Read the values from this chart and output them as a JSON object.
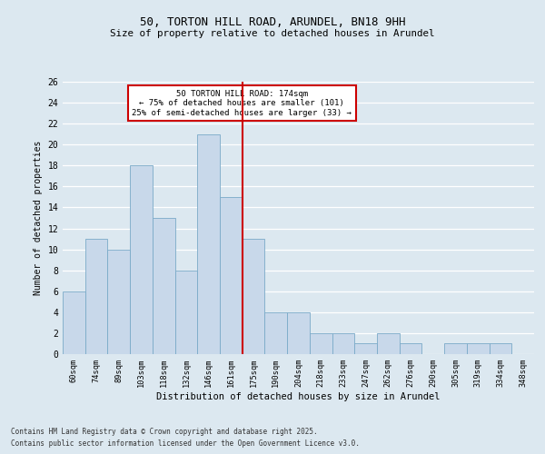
{
  "title1": "50, TORTON HILL ROAD, ARUNDEL, BN18 9HH",
  "title2": "Size of property relative to detached houses in Arundel",
  "xlabel": "Distribution of detached houses by size in Arundel",
  "ylabel": "Number of detached properties",
  "categories": [
    "60sqm",
    "74sqm",
    "89sqm",
    "103sqm",
    "118sqm",
    "132sqm",
    "146sqm",
    "161sqm",
    "175sqm",
    "190sqm",
    "204sqm",
    "218sqm",
    "233sqm",
    "247sqm",
    "262sqm",
    "276sqm",
    "290sqm",
    "305sqm",
    "319sqm",
    "334sqm",
    "348sqm"
  ],
  "values": [
    6,
    11,
    10,
    18,
    13,
    8,
    21,
    15,
    11,
    4,
    4,
    2,
    2,
    1,
    2,
    1,
    0,
    1,
    1,
    1,
    0
  ],
  "bar_color": "#c8d8ea",
  "bar_edge_color": "#7aaac8",
  "highlight_index": 8,
  "highlight_color": "#cc0000",
  "annotation_line1": "50 TORTON HILL ROAD: 174sqm",
  "annotation_line2": "← 75% of detached houses are smaller (101)",
  "annotation_line3": "25% of semi-detached houses are larger (33) →",
  "annotation_box_color": "#cc0000",
  "ylim": [
    0,
    26
  ],
  "yticks": [
    0,
    2,
    4,
    6,
    8,
    10,
    12,
    14,
    16,
    18,
    20,
    22,
    24,
    26
  ],
  "footer_line1": "Contains HM Land Registry data © Crown copyright and database right 2025.",
  "footer_line2": "Contains public sector information licensed under the Open Government Licence v3.0.",
  "bg_color": "#dce8f0",
  "fig_bg_color": "#dce8f0",
  "grid_color": "#ffffff"
}
